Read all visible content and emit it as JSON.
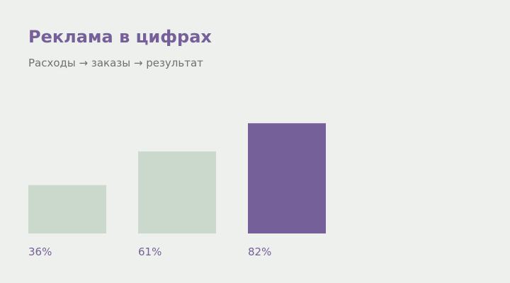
{
  "header": {
    "title": "Реклама в цифрах",
    "subtitle": "Расходы → заказы → результат"
  },
  "colors": {
    "background": "#edf0ec",
    "accent": "#76609a",
    "muted_bar": "#cbd9cd",
    "subtitle_text": "#6d726d"
  },
  "chart_data": {
    "type": "bar",
    "title": "Реклама в цифрах",
    "subtitle": "Расходы → заказы → результат",
    "categories": [],
    "values": [
      36,
      61,
      82
    ],
    "labels": [
      "36%",
      "61%",
      "82%"
    ],
    "highlight_index": 2,
    "ylim": [
      0,
      100
    ],
    "unit": "%",
    "grid": false,
    "legend": "none"
  }
}
